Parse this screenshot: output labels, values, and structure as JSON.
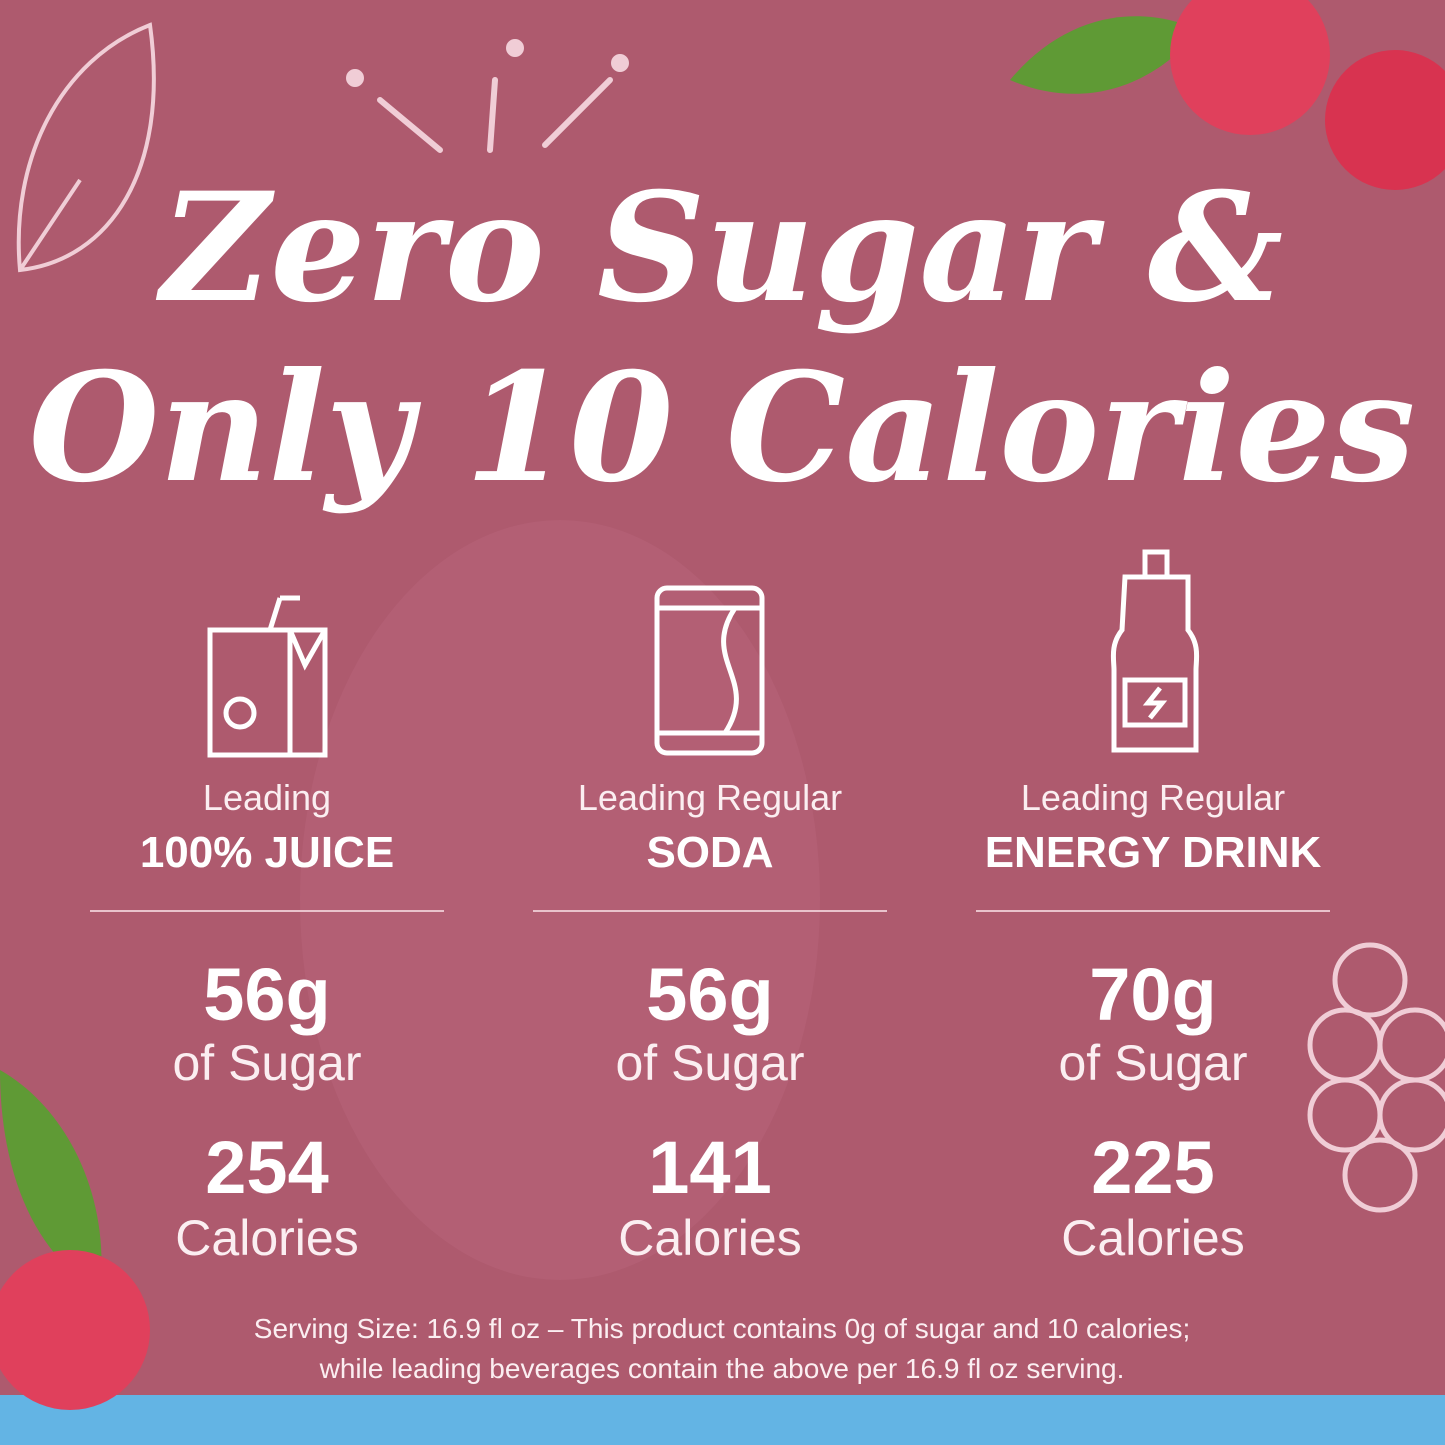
{
  "header": {
    "title_line_1": "Zero Sugar &",
    "title_line_2": "Only 10 Calories"
  },
  "columns": [
    {
      "label_top": "Leading",
      "label_main": "100% JUICE",
      "sugar": "56g",
      "sugar_label": "of Sugar",
      "calories": "254",
      "calories_label": "Calories"
    },
    {
      "label_top": "Leading Regular",
      "label_main": "SODA",
      "sugar": "56g",
      "sugar_label": "of Sugar",
      "calories": "141",
      "calories_label": "Calories"
    },
    {
      "label_top": "Leading Regular",
      "label_main": "ENERGY DRINK",
      "sugar": "70g",
      "sugar_label": "of Sugar",
      "calories": "225",
      "calories_label": "Calories"
    }
  ],
  "footnote": {
    "line_1": "Serving Size: 16.9 fl oz – This product contains 0g of sugar and 10 calories;",
    "line_2": "while leading beverages contain the above per 16.9 fl oz serving."
  }
}
